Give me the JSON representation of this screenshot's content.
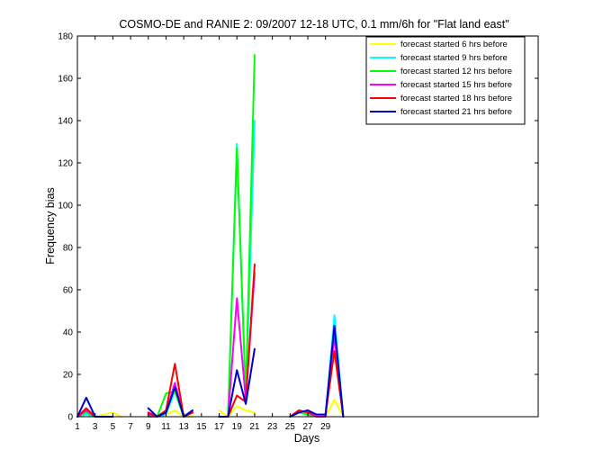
{
  "chart_data": {
    "type": "line",
    "title": "COSMO-DE and RANIE 2: 09/2007 12-18 UTC, 0.1 mm/6h for \"Flat land east\"",
    "xlabel": "Days",
    "ylabel": "Frequency bias",
    "xlim": [
      1,
      53
    ],
    "ylim": [
      0,
      180
    ],
    "xticks": [
      1,
      3,
      5,
      7,
      9,
      11,
      13,
      15,
      17,
      19,
      21,
      23,
      25,
      27,
      29
    ],
    "yticks": [
      0,
      20,
      40,
      60,
      80,
      100,
      120,
      140,
      160,
      180
    ],
    "grid": false,
    "legend_position": "top-right",
    "x": [
      1,
      2,
      3,
      4,
      5,
      6,
      7,
      8,
      9,
      10,
      11,
      12,
      13,
      14,
      15,
      16,
      17,
      18,
      19,
      20,
      21,
      22,
      23,
      24,
      25,
      26,
      27,
      28,
      29,
      30,
      31
    ],
    "series": [
      {
        "name": "forecast started 6 hrs before",
        "color": "#ffff00",
        "values": [
          0,
          3,
          0,
          1,
          2,
          0,
          null,
          null,
          0,
          0,
          1,
          3,
          0,
          0,
          null,
          null,
          3,
          0,
          5,
          3,
          2,
          null,
          null,
          null,
          0,
          2,
          1,
          0,
          0,
          8,
          0
        ]
      },
      {
        "name": "forecast started 9 hrs before",
        "color": "#00ffff",
        "values": [
          0,
          1,
          0,
          0,
          0,
          null,
          null,
          null,
          1,
          0,
          1,
          12,
          0,
          2,
          null,
          null,
          0,
          0,
          129,
          8,
          140,
          null,
          null,
          null,
          0,
          2,
          1,
          0,
          0,
          48,
          0
        ]
      },
      {
        "name": "forecast started 12 hrs before",
        "color": "#00ff00",
        "values": [
          0,
          2,
          0,
          0,
          0,
          null,
          null,
          null,
          0,
          0,
          11,
          12,
          0,
          2,
          null,
          null,
          0,
          0,
          127,
          10,
          171,
          null,
          null,
          null,
          0,
          2,
          1,
          0,
          0,
          42,
          0
        ]
      },
      {
        "name": "forecast started 15 hrs before",
        "color": "#ff00ff",
        "values": [
          0,
          3,
          0,
          0,
          0,
          null,
          null,
          null,
          1,
          0,
          2,
          16,
          0,
          2,
          null,
          null,
          0,
          0,
          56,
          8,
          68,
          null,
          null,
          null,
          0,
          3,
          2,
          0,
          0,
          38,
          0
        ]
      },
      {
        "name": "forecast started 18 hrs before",
        "color": "#ff0000",
        "values": [
          0,
          4,
          0,
          0,
          0,
          null,
          null,
          null,
          2,
          0,
          3,
          25,
          0,
          2,
          null,
          null,
          0,
          0,
          10,
          7,
          72,
          null,
          null,
          null,
          0,
          3,
          2,
          1,
          1,
          31,
          0
        ]
      },
      {
        "name": "forecast started 21 hrs before",
        "color": "#0000cc",
        "values": [
          0,
          9,
          0,
          0,
          0,
          null,
          null,
          null,
          4,
          0,
          2,
          14,
          0,
          3,
          null,
          null,
          0,
          0,
          22,
          6,
          32,
          null,
          null,
          null,
          0,
          2,
          3,
          1,
          1,
          43,
          0
        ]
      }
    ]
  }
}
